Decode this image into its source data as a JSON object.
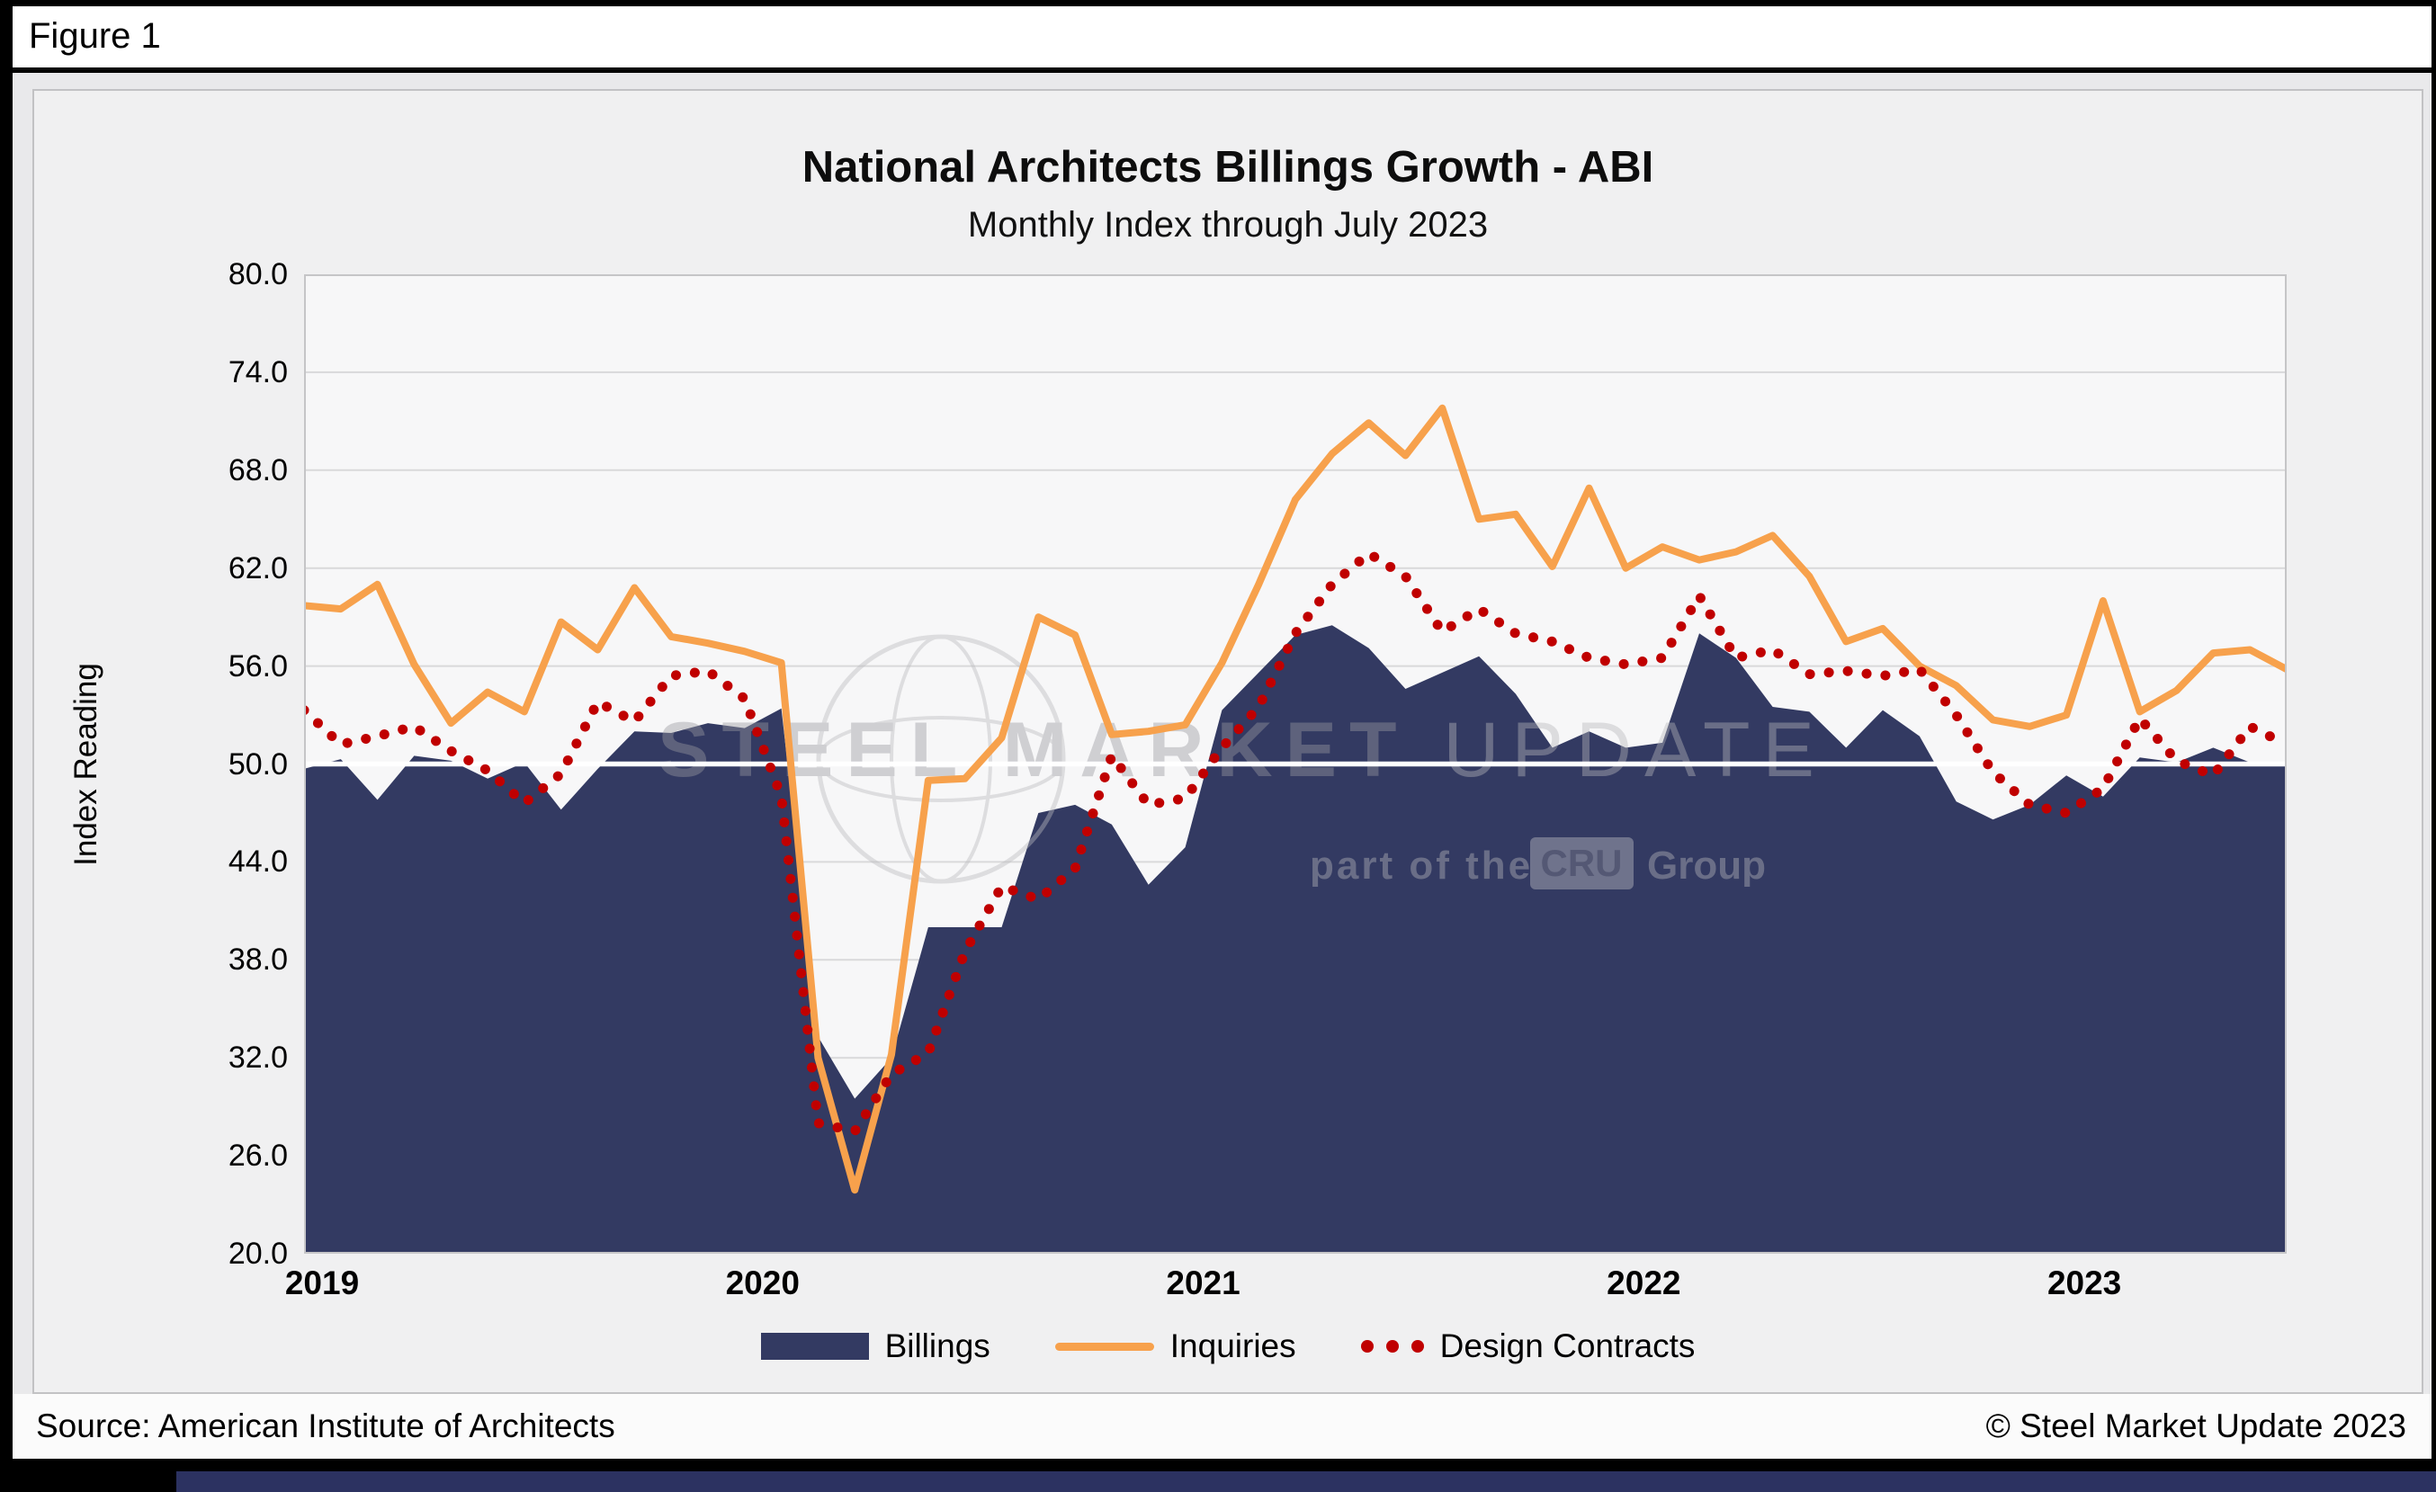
{
  "figure": {
    "label": "Figure 1"
  },
  "footer": {
    "source": "Source: American Institute of Architects",
    "copyright": "© Steel Market Update 2023"
  },
  "colors": {
    "billings_navy": "#333a62",
    "inquiries_orange": "#f7a14c",
    "design_contracts_red": "#c00000",
    "accent_navy": "#2c3261",
    "reference_line_white": "#ffffff"
  },
  "watermark": {
    "line1_bold": "STEEL MARKET",
    "line1_light": "UPDATE",
    "line2_pre": "part of the",
    "cru": "CRU",
    "line2_post": "Group"
  },
  "chart_data": {
    "type": "area",
    "title": "National Architects Billings Growth - ABI",
    "subtitle": "Monthly Index through July 2023",
    "ylabel": "Index Reading",
    "ylim": [
      20,
      80
    ],
    "ytick_step": 6,
    "ytick_labels": [
      "80.0",
      "74.0",
      "68.0",
      "62.0",
      "56.0",
      "50.0",
      "44.0",
      "38.0",
      "32.0",
      "26.0",
      "20.0"
    ],
    "reference_line": 50,
    "grid": "horizontal",
    "legend_position": "bottom",
    "x_year_labels": [
      {
        "label": "2019",
        "month_index": 0
      },
      {
        "label": "2020",
        "month_index": 12
      },
      {
        "label": "2021",
        "month_index": 24
      },
      {
        "label": "2022",
        "month_index": 36
      },
      {
        "label": "2023",
        "month_index": 48
      }
    ],
    "months": [
      "2019-01",
      "2019-02",
      "2019-03",
      "2019-04",
      "2019-05",
      "2019-06",
      "2019-07",
      "2019-08",
      "2019-09",
      "2019-10",
      "2019-11",
      "2019-12",
      "2020-01",
      "2020-02",
      "2020-03",
      "2020-04",
      "2020-05",
      "2020-06",
      "2020-07",
      "2020-08",
      "2020-09",
      "2020-10",
      "2020-11",
      "2020-12",
      "2021-01",
      "2021-02",
      "2021-03",
      "2021-04",
      "2021-05",
      "2021-06",
      "2021-07",
      "2021-08",
      "2021-09",
      "2021-10",
      "2021-11",
      "2021-12",
      "2022-01",
      "2022-02",
      "2022-03",
      "2022-04",
      "2022-05",
      "2022-06",
      "2022-07",
      "2022-08",
      "2022-09",
      "2022-10",
      "2022-11",
      "2022-12",
      "2023-01",
      "2023-02",
      "2023-03",
      "2023-04",
      "2023-05",
      "2023-06",
      "2023-07"
    ],
    "series": [
      {
        "name": "Billings",
        "type": "area",
        "color": "#333a62",
        "values": [
          49.7,
          50.3,
          47.8,
          50.5,
          50.2,
          49.1,
          50.1,
          47.2,
          49.7,
          52.0,
          51.9,
          52.5,
          52.2,
          53.4,
          33.3,
          29.5,
          32.0,
          40.0,
          40.0,
          40.0,
          47.0,
          47.5,
          46.3,
          42.6,
          44.9,
          53.3,
          55.6,
          57.9,
          58.5,
          57.1,
          54.6,
          55.6,
          56.6,
          54.3,
          51.0,
          52.0,
          51.0,
          51.3,
          58.0,
          56.5,
          53.5,
          53.2,
          51.0,
          53.3,
          51.7,
          47.7,
          46.6,
          47.5,
          49.3,
          48.0,
          50.4,
          50.1,
          51.0,
          50.1,
          50.0
        ]
      },
      {
        "name": "Inquiries",
        "type": "line",
        "color": "#f7a14c",
        "values": [
          59.7,
          59.5,
          61.0,
          56.1,
          52.5,
          54.4,
          53.2,
          58.7,
          57.0,
          60.8,
          57.8,
          57.4,
          56.9,
          56.2,
          32.0,
          23.9,
          32.2,
          49.0,
          49.1,
          51.6,
          59.0,
          57.9,
          51.8,
          52.0,
          52.4,
          56.2,
          61.0,
          66.2,
          69.0,
          70.9,
          68.9,
          71.8,
          65.0,
          65.3,
          62.1,
          66.9,
          62.0,
          63.3,
          62.5,
          63.0,
          64.0,
          61.5,
          57.5,
          58.3,
          56.0,
          54.8,
          52.7,
          52.3,
          53.0,
          60.0,
          53.2,
          54.5,
          56.8,
          57.0,
          55.8
        ]
      },
      {
        "name": "Design Contracts",
        "type": "dotted",
        "color": "#c00000",
        "values": [
          53.3,
          51.2,
          51.7,
          52.3,
          50.8,
          49.6,
          47.6,
          49.4,
          53.8,
          52.6,
          55.4,
          55.7,
          54.0,
          48.0,
          28.0,
          27.5,
          31.0,
          32.3,
          38.5,
          42.5,
          41.7,
          43.6,
          50.5,
          47.5,
          47.9,
          51.0,
          53.5,
          58.0,
          61.0,
          62.9,
          61.5,
          58.1,
          59.5,
          58.0,
          57.5,
          56.5,
          56.1,
          56.5,
          60.3,
          56.5,
          57.0,
          55.5,
          55.7,
          55.4,
          55.8,
          53.0,
          49.5,
          47.5,
          47.0,
          48.5,
          52.8,
          50.2,
          49.3,
          52.3,
          51.2
        ]
      }
    ]
  }
}
